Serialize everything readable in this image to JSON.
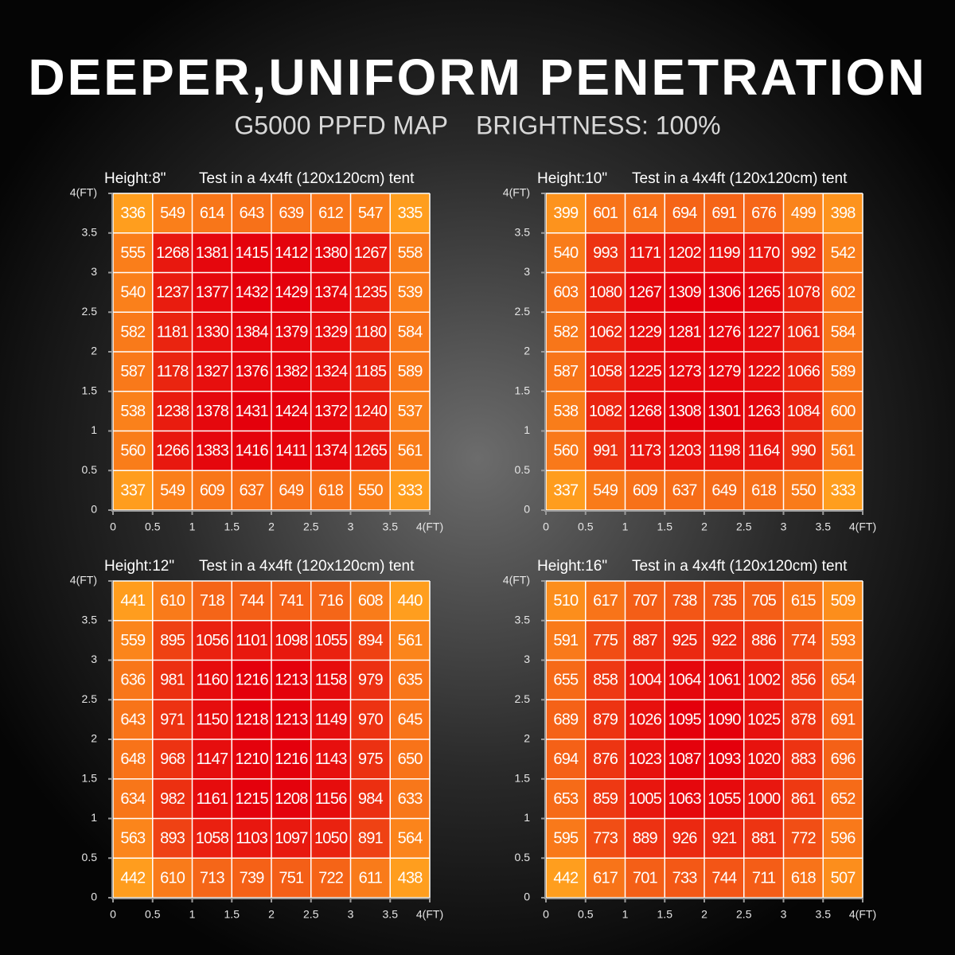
{
  "title": "DEEPER,UNIFORM PENETRATION",
  "subtitle": "G5000 PPFD MAP    BRIGHTNESS: 100%",
  "chart_data": [
    {
      "type": "heatmap",
      "title": "Height:8\"",
      "subtitle": "Test in a 4x4ft (120x120cm) tent",
      "xlim": [
        0,
        4
      ],
      "ylim": [
        0,
        4
      ],
      "xticks": [
        0,
        0.5,
        1,
        1.5,
        2,
        2.5,
        3,
        3.5,
        {
          "value": 4,
          "label": "4(FT)"
        }
      ],
      "yticks": [
        0,
        0.5,
        1,
        1.5,
        2,
        2.5,
        3,
        3.5,
        {
          "value": 4,
          "label": "4(FT)"
        }
      ],
      "colors": [
        "#ff9e1e",
        "#e4000c"
      ],
      "values": [
        [
          336,
          549,
          614,
          643,
          639,
          612,
          547,
          335
        ],
        [
          555,
          1268,
          1381,
          1415,
          1412,
          1380,
          1267,
          558
        ],
        [
          540,
          1237,
          1377,
          1432,
          1429,
          1374,
          1235,
          539
        ],
        [
          582,
          1181,
          1330,
          1384,
          1379,
          1329,
          1180,
          584
        ],
        [
          587,
          1178,
          1327,
          1376,
          1382,
          1324,
          1185,
          589
        ],
        [
          538,
          1238,
          1378,
          1431,
          1424,
          1372,
          1240,
          537
        ],
        [
          560,
          1266,
          1383,
          1416,
          1411,
          1374,
          1265,
          561
        ],
        [
          337,
          549,
          609,
          637,
          649,
          618,
          550,
          333
        ]
      ]
    },
    {
      "type": "heatmap",
      "title": "Height:10\"",
      "subtitle": "Test in a 4x4ft (120x120cm) tent",
      "xlim": [
        0,
        4
      ],
      "ylim": [
        0,
        4
      ],
      "xticks": [
        0,
        0.5,
        1,
        1.5,
        2,
        2.5,
        3,
        3.5,
        {
          "value": 4,
          "label": "4(FT)"
        }
      ],
      "yticks": [
        0,
        0.5,
        1,
        1.5,
        2,
        2.5,
        3,
        3.5,
        {
          "value": 4,
          "label": "4(FT)"
        }
      ],
      "colors": [
        "#ff9e1e",
        "#e4000c"
      ],
      "values": [
        [
          399,
          601,
          614,
          694,
          691,
          676,
          499,
          398
        ],
        [
          540,
          993,
          1171,
          1202,
          1199,
          1170,
          992,
          542
        ],
        [
          603,
          1080,
          1267,
          1309,
          1306,
          1265,
          1078,
          602
        ],
        [
          582,
          1062,
          1229,
          1281,
          1276,
          1227,
          1061,
          584
        ],
        [
          587,
          1058,
          1225,
          1273,
          1279,
          1222,
          1066,
          589
        ],
        [
          538,
          1082,
          1268,
          1308,
          1301,
          1263,
          1084,
          600
        ],
        [
          560,
          991,
          1173,
          1203,
          1198,
          1164,
          990,
          561
        ],
        [
          337,
          549,
          609,
          637,
          649,
          618,
          550,
          333
        ]
      ]
    },
    {
      "type": "heatmap",
      "title": "Height:12\"",
      "subtitle": "Test in a 4x4ft (120x120cm) tent",
      "xlim": [
        0,
        4
      ],
      "ylim": [
        0,
        4
      ],
      "xticks": [
        0,
        0.5,
        1,
        1.5,
        2,
        2.5,
        3,
        3.5,
        {
          "value": 4,
          "label": "4(FT)"
        }
      ],
      "yticks": [
        0,
        0.5,
        1,
        1.5,
        2,
        2.5,
        3,
        3.5,
        {
          "value": 4,
          "label": "4(FT)"
        }
      ],
      "colors": [
        "#ff9e1e",
        "#e4000c"
      ],
      "values": [
        [
          441,
          610,
          718,
          744,
          741,
          716,
          608,
          440
        ],
        [
          559,
          895,
          1056,
          1101,
          1098,
          1055,
          894,
          561
        ],
        [
          636,
          981,
          1160,
          1216,
          1213,
          1158,
          979,
          635
        ],
        [
          643,
          971,
          1150,
          1218,
          1213,
          1149,
          970,
          645
        ],
        [
          648,
          968,
          1147,
          1210,
          1216,
          1143,
          975,
          650
        ],
        [
          634,
          982,
          1161,
          1215,
          1208,
          1156,
          984,
          633
        ],
        [
          563,
          893,
          1058,
          1103,
          1097,
          1050,
          891,
          564
        ],
        [
          442,
          610,
          713,
          739,
          751,
          722,
          611,
          438
        ]
      ]
    },
    {
      "type": "heatmap",
      "title": "Height:16\"",
      "subtitle": "Test in a 4x4ft (120x120cm) tent",
      "xlim": [
        0,
        4
      ],
      "ylim": [
        0,
        4
      ],
      "xticks": [
        0,
        0.5,
        1,
        1.5,
        2,
        2.5,
        3,
        3.5,
        {
          "value": 4,
          "label": "4(FT)"
        }
      ],
      "yticks": [
        0,
        0.5,
        1,
        1.5,
        2,
        2.5,
        3,
        3.5,
        {
          "value": 4,
          "label": "4(FT)"
        }
      ],
      "colors": [
        "#ff9e1e",
        "#e4000c"
      ],
      "values": [
        [
          510,
          617,
          707,
          738,
          735,
          705,
          615,
          509
        ],
        [
          591,
          775,
          887,
          925,
          922,
          886,
          774,
          593
        ],
        [
          655,
          858,
          1004,
          1064,
          1061,
          1002,
          856,
          654
        ],
        [
          689,
          879,
          1026,
          1095,
          1090,
          1025,
          878,
          691
        ],
        [
          694,
          876,
          1023,
          1087,
          1093,
          1020,
          883,
          696
        ],
        [
          653,
          859,
          1005,
          1063,
          1055,
          1000,
          861,
          652
        ],
        [
          595,
          773,
          889,
          926,
          921,
          881,
          772,
          596
        ],
        [
          442,
          617,
          701,
          733,
          744,
          711,
          618,
          507
        ]
      ]
    }
  ]
}
